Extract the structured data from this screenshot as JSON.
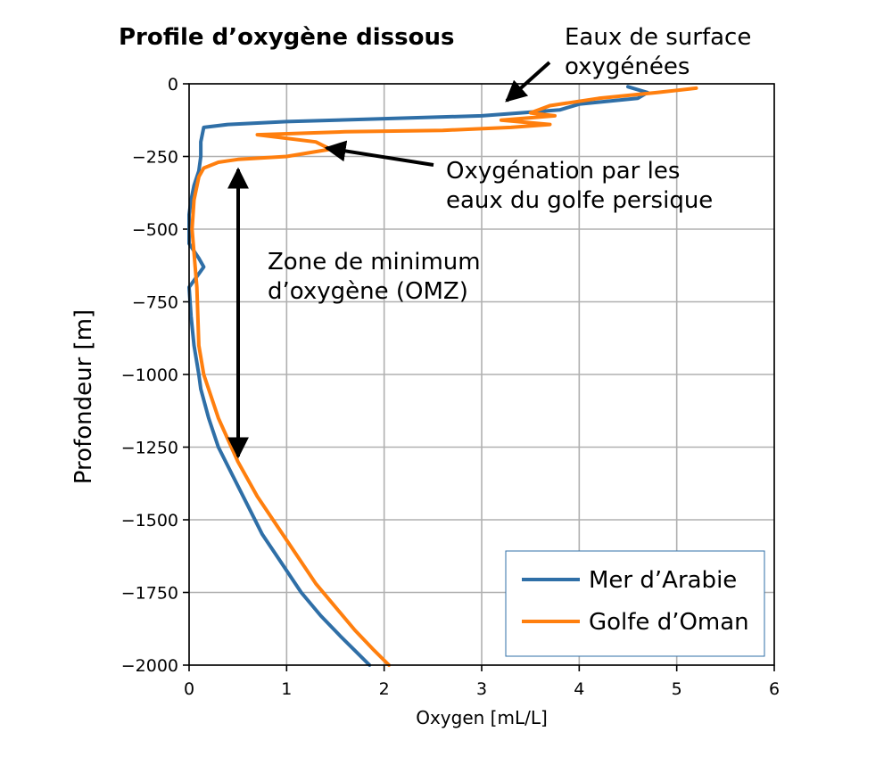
{
  "chart_data": {
    "type": "line",
    "title": "Profile d’oxygène dissous",
    "xlabel": "Oxygen [mL/L]",
    "ylabel": "Profondeur [m]",
    "xlim": [
      0,
      6
    ],
    "ylim": [
      -2000,
      0
    ],
    "xticks": [
      "0",
      "1",
      "2",
      "3",
      "4",
      "5",
      "6"
    ],
    "yticks": [
      "0",
      "−250",
      "−500",
      "−750",
      "−1000",
      "−1250",
      "−1500",
      "−1750",
      "−2000"
    ],
    "grid": true,
    "legend_position": "lower-right",
    "series": [
      {
        "name": "Mer d’Arabie",
        "color": "#2f6fa7",
        "x": [
          4.5,
          4.7,
          4.6,
          4.0,
          3.8,
          3.4,
          3.0,
          2.0,
          1.0,
          0.4,
          0.15,
          0.12,
          0.12,
          0.1,
          0.05,
          0.02,
          0.0,
          0.0,
          0.1,
          0.15,
          0.0,
          0.02,
          0.05,
          0.1,
          0.12,
          0.2,
          0.3,
          0.45,
          0.6,
          0.75,
          0.95,
          1.15,
          1.35,
          1.55,
          1.7,
          1.85
        ],
        "y": [
          -10,
          -30,
          -50,
          -70,
          -90,
          -100,
          -110,
          -120,
          -130,
          -140,
          -150,
          -200,
          -250,
          -300,
          -350,
          -400,
          -450,
          -550,
          -600,
          -630,
          -700,
          -800,
          -900,
          -1000,
          -1050,
          -1150,
          -1250,
          -1350,
          -1450,
          -1550,
          -1650,
          -1750,
          -1830,
          -1900,
          -1950,
          -2000
        ]
      },
      {
        "name": "Golfe d’Oman",
        "color": "#ff7f0e",
        "x": [
          5.2,
          4.8,
          4.2,
          3.7,
          3.5,
          3.75,
          3.2,
          3.7,
          3.3,
          2.6,
          1.6,
          0.7,
          1.3,
          1.45,
          1.0,
          0.5,
          0.3,
          0.15,
          0.1,
          0.05,
          0.03,
          0.08,
          0.1,
          0.15,
          0.3,
          0.5,
          0.7,
          0.9,
          1.1,
          1.3,
          1.5,
          1.7,
          1.9,
          2.05
        ],
        "y": [
          -15,
          -30,
          -50,
          -75,
          -100,
          -110,
          -125,
          -140,
          -150,
          -160,
          -165,
          -175,
          -200,
          -225,
          -250,
          -260,
          -270,
          -290,
          -320,
          -400,
          -500,
          -700,
          -900,
          -1000,
          -1150,
          -1300,
          -1420,
          -1520,
          -1620,
          -1720,
          -1800,
          -1880,
          -1950,
          -2000
        ]
      }
    ],
    "annotations": [
      {
        "text_lines": [
          "Eaux de surface",
          "oxygénées"
        ],
        "arrow_to": [
          3.2,
          -65
        ]
      },
      {
        "text_lines": [
          "Oxygénation par les",
          "eaux du golfe persique"
        ],
        "arrow_to": [
          1.4,
          -220
        ]
      },
      {
        "text_lines": [
          "Zone de minimum",
          "d’oxygène (OMZ)"
        ],
        "double_arrow_x": 0.5,
        "double_arrow_y": [
          -280,
          -1310
        ]
      }
    ]
  }
}
